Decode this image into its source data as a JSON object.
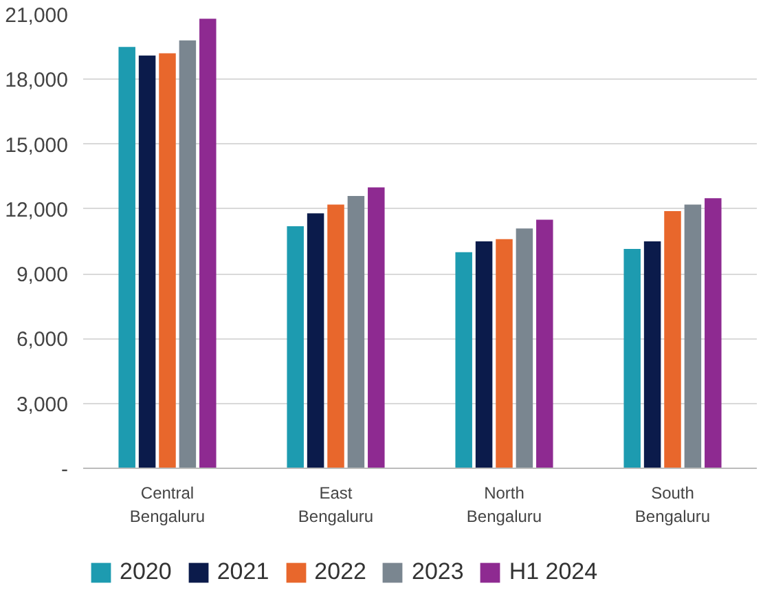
{
  "chart_data": {
    "type": "bar",
    "categories": [
      "Central\nBengaluru",
      "East\nBengaluru",
      "North\nBengaluru",
      "South\nBengaluru"
    ],
    "series": [
      {
        "name": "2020",
        "color": "#1d9bb0",
        "values": [
          19500,
          11200,
          10000,
          10150
        ]
      },
      {
        "name": "2021",
        "color": "#0b1b4b",
        "values": [
          19100,
          11800,
          10500,
          10500
        ]
      },
      {
        "name": "2022",
        "color": "#e8672c",
        "values": [
          19200,
          12200,
          10600,
          11900
        ]
      },
      {
        "name": "2023",
        "color": "#7a8690",
        "values": [
          19800,
          12600,
          11100,
          12200
        ]
      },
      {
        "name": "H1 2024",
        "color": "#8e2a91",
        "values": [
          20800,
          13000,
          11500,
          12500
        ]
      }
    ],
    "ylim": [
      0,
      21000
    ],
    "yticks": [
      {
        "value": 0,
        "label": "-"
      },
      {
        "value": 3000,
        "label": "3,000"
      },
      {
        "value": 6000,
        "label": "6,000"
      },
      {
        "value": 9000,
        "label": "9,000"
      },
      {
        "value": 12000,
        "label": "12,000"
      },
      {
        "value": 15000,
        "label": "15,000"
      },
      {
        "value": 18000,
        "label": "18,000"
      },
      {
        "value": 21000,
        "label": "21,000"
      }
    ],
    "grid": "y",
    "legend": "bottom"
  }
}
